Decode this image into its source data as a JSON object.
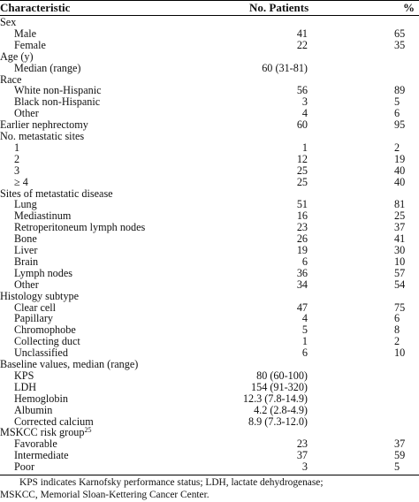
{
  "header": {
    "characteristic": "Characteristic",
    "patients": "No. Patients",
    "percent": "%"
  },
  "rows": [
    {
      "label": "Sex",
      "indent": false,
      "n": "",
      "pct": ""
    },
    {
      "label": "Male",
      "indent": true,
      "n": "41",
      "pct": "65"
    },
    {
      "label": "Female",
      "indent": true,
      "n": "22",
      "pct": "35"
    },
    {
      "label": "Age (y)",
      "indent": false,
      "n": "",
      "pct": ""
    },
    {
      "label": "Median (range)",
      "indent": true,
      "n": "60 (31-81)",
      "pct": ""
    },
    {
      "label": "Race",
      "indent": false,
      "n": "",
      "pct": ""
    },
    {
      "label": "White non-Hispanic",
      "indent": true,
      "n": "56",
      "pct": "89"
    },
    {
      "label": "Black non-Hispanic",
      "indent": true,
      "n": "3",
      "pct": "5"
    },
    {
      "label": "Other",
      "indent": true,
      "n": "4",
      "pct": "6"
    },
    {
      "label": "Earlier nephrectomy",
      "indent": false,
      "n": "60",
      "pct": "95"
    },
    {
      "label": "No. metastatic sites",
      "indent": false,
      "n": "",
      "pct": ""
    },
    {
      "label": "1",
      "indent": true,
      "n": "1",
      "pct": "2"
    },
    {
      "label": "2",
      "indent": true,
      "n": "12",
      "pct": "19"
    },
    {
      "label": "3",
      "indent": true,
      "n": "25",
      "pct": "40"
    },
    {
      "label": "≥ 4",
      "indent": true,
      "n": "25",
      "pct": "40"
    },
    {
      "label": "Sites of metastatic disease",
      "indent": false,
      "n": "",
      "pct": ""
    },
    {
      "label": "Lung",
      "indent": true,
      "n": "51",
      "pct": "81"
    },
    {
      "label": "Mediastinum",
      "indent": true,
      "n": "16",
      "pct": "25"
    },
    {
      "label": "Retroperitoneum lymph nodes",
      "indent": true,
      "n": "23",
      "pct": "37"
    },
    {
      "label": "Bone",
      "indent": true,
      "n": "26",
      "pct": "41"
    },
    {
      "label": "Liver",
      "indent": true,
      "n": "19",
      "pct": "30"
    },
    {
      "label": "Brain",
      "indent": true,
      "n": "6",
      "pct": "10"
    },
    {
      "label": "Lymph nodes",
      "indent": true,
      "n": "36",
      "pct": "57"
    },
    {
      "label": "Other",
      "indent": true,
      "n": "34",
      "pct": "54"
    },
    {
      "label": "Histology subtype",
      "indent": false,
      "n": "",
      "pct": ""
    },
    {
      "label": "Clear cell",
      "indent": true,
      "n": "47",
      "pct": "75"
    },
    {
      "label": "Papillary",
      "indent": true,
      "n": "4",
      "pct": "6"
    },
    {
      "label": "Chromophobe",
      "indent": true,
      "n": "5",
      "pct": "8"
    },
    {
      "label": "Collecting duct",
      "indent": true,
      "n": "1",
      "pct": "2"
    },
    {
      "label": "Unclassified",
      "indent": true,
      "n": "6",
      "pct": "10"
    },
    {
      "label": "Baseline values, median (range)",
      "indent": false,
      "n": "",
      "pct": ""
    },
    {
      "label": "KPS",
      "indent": true,
      "n": "80 (60-100)",
      "pct": ""
    },
    {
      "label": "LDH",
      "indent": true,
      "n": "154 (91-320)",
      "pct": ""
    },
    {
      "label": "Hemoglobin",
      "indent": true,
      "n": "12.3 (7.8-14.9)",
      "pct": ""
    },
    {
      "label": "Albumin",
      "indent": true,
      "n": "4.2 (2.8-4.9)",
      "pct": ""
    },
    {
      "label": "Corrected calcium",
      "indent": true,
      "n": "8.9 (7.3-12.0)",
      "pct": ""
    },
    {
      "label": "MSKCC risk group",
      "sup": "25",
      "indent": false,
      "n": "",
      "pct": ""
    },
    {
      "label": "Favorable",
      "indent": true,
      "n": "23",
      "pct": "37"
    },
    {
      "label": "Intermediate",
      "indent": true,
      "n": "37",
      "pct": "59"
    },
    {
      "label": "Poor",
      "indent": true,
      "n": "3",
      "pct": "5"
    }
  ],
  "footnote": {
    "line1": "KPS indicates Karnofsky performance status; LDH, lactate dehydrogenase;",
    "line2": "MSKCC, Memorial Sloan-Kettering Cancer Center."
  }
}
